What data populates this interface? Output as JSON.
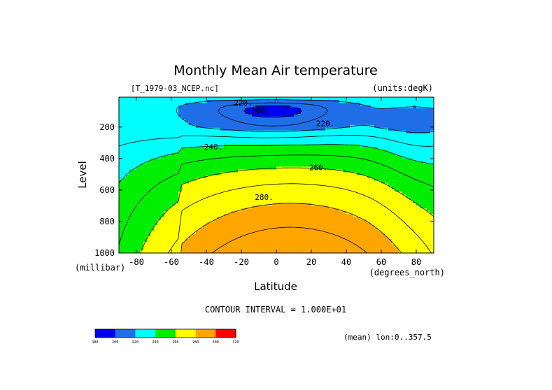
{
  "chart_data": {
    "type": "contour",
    "title": "Monthly Mean Air temperature",
    "file_label": "[T_1979-03_NCEP.nc]",
    "units_label": "(units:degK)",
    "xlabel": "Latitude",
    "x_unit_label": "(degrees_north)",
    "ylabel": "Level",
    "y_unit_label": "(millibar)",
    "xlim": [
      -90,
      90
    ],
    "ylim": [
      1000,
      10
    ],
    "x_ticks": [
      -80,
      -60,
      -40,
      -20,
      0,
      20,
      40,
      60,
      80
    ],
    "x_tick_labels": [
      "-80",
      "-60",
      "-40",
      "-20",
      "0",
      "20",
      "40",
      "60",
      "80"
    ],
    "y_ticks": [
      200,
      400,
      600,
      800,
      1000
    ],
    "y_tick_labels": [
      "200",
      "400",
      "600",
      "800",
      "1000"
    ],
    "contour_interval_text": "CONTOUR INTERVAL = 1.000E+01",
    "contour_levels": [
      180,
      190,
      200,
      210,
      220,
      230,
      240,
      250,
      260,
      270,
      280,
      290,
      300
    ],
    "contour_labels": [
      {
        "text": "220.",
        "lat": -19,
        "lev": 50
      },
      {
        "text": "200.",
        "lat": -9,
        "lev": 100
      },
      {
        "text": "220.",
        "lat": 28,
        "lev": 180
      },
      {
        "text": "240.",
        "lat": -36,
        "lev": 330
      },
      {
        "text": "260.",
        "lat": 24,
        "lev": 460
      },
      {
        "text": "280.",
        "lat": -7,
        "lev": 650
      }
    ],
    "colorbar": {
      "bins": [
        {
          "from": 180,
          "to": 200,
          "color": "#0000ee"
        },
        {
          "from": 200,
          "to": 220,
          "color": "#1f6ee8"
        },
        {
          "from": 220,
          "to": 240,
          "color": "#00ffff"
        },
        {
          "from": 240,
          "to": 260,
          "color": "#00ee00"
        },
        {
          "from": 260,
          "to": 280,
          "color": "#ffff00"
        },
        {
          "from": 280,
          "to": 300,
          "color": "#ffa500"
        },
        {
          "from": 300,
          "to": 320,
          "color": "#ff0000"
        }
      ],
      "tick_labels": [
        "180",
        "200",
        "220",
        "240",
        "260",
        "280",
        "300",
        "320"
      ]
    },
    "mean_label": "(mean) lon:0..357.5"
  }
}
